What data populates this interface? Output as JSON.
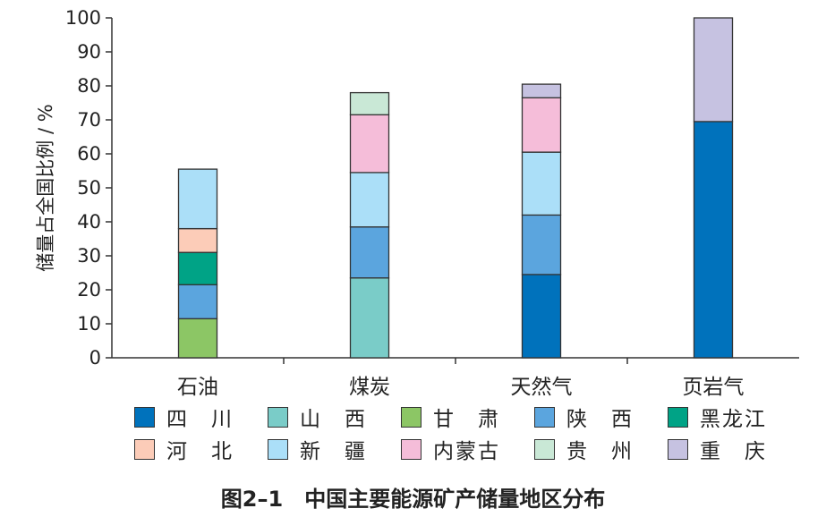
{
  "chart_data": {
    "type": "bar",
    "stacked": true,
    "ylabel": "储量占全国比例 / %",
    "ylim": [
      0,
      100
    ],
    "yticks": [
      0,
      10,
      20,
      30,
      40,
      50,
      60,
      70,
      80,
      90,
      100
    ],
    "categories": [
      "石油",
      "煤炭",
      "天然气",
      "页岩气"
    ],
    "series": [
      {
        "name": "四　川",
        "color": "#0072BC",
        "values": [
          0,
          0,
          24.5,
          69.5
        ]
      },
      {
        "name": "山　西",
        "color": "#7ACCC8",
        "values": [
          0,
          23.5,
          0,
          0
        ]
      },
      {
        "name": "甘　肃",
        "color": "#8CC665",
        "values": [
          11.5,
          0,
          0,
          0
        ]
      },
      {
        "name": "陕　西",
        "color": "#5BA5DE",
        "values": [
          10,
          15,
          17.5,
          0
        ]
      },
      {
        "name": "黑龙江",
        "color": "#00A386",
        "values": [
          9.5,
          0,
          0,
          0
        ]
      },
      {
        "name": "河　北",
        "color": "#FCCCB8",
        "values": [
          7,
          0,
          0,
          0
        ]
      },
      {
        "name": "新　疆",
        "color": "#ABDFF8",
        "values": [
          17.5,
          16,
          18.5,
          0
        ]
      },
      {
        "name": "内蒙古",
        "color": "#F5BDD9",
        "values": [
          0,
          17,
          16,
          0
        ]
      },
      {
        "name": "贵　州",
        "color": "#C9E8D6",
        "values": [
          0,
          6.5,
          0,
          0
        ]
      },
      {
        "name": "重　庆",
        "color": "#C6C2E1",
        "values": [
          0,
          0,
          4,
          30.5
        ]
      }
    ],
    "legend_position": "bottom",
    "grid": false
  },
  "caption": "图2–1　中国主要能源矿产储量地区分布"
}
